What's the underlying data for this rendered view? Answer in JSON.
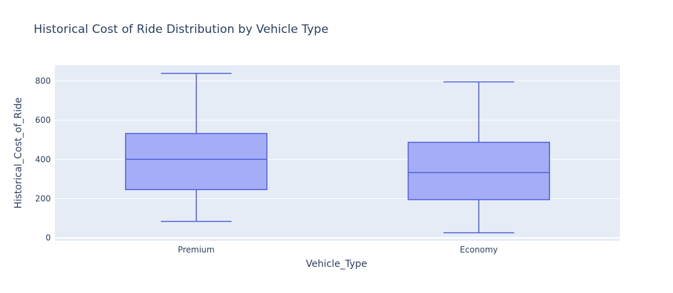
{
  "chart_data": {
    "type": "box",
    "title": "Historical Cost of Ride Distribution by Vehicle Type",
    "xlabel": "Vehicle_Type",
    "ylabel": "Historical_Cost_of_Ride",
    "categories": [
      "Premium",
      "Economy"
    ],
    "boxes": [
      {
        "category": "Premium",
        "min": 84,
        "q1": 246,
        "median": 400,
        "q3": 532,
        "max": 838
      },
      {
        "category": "Economy",
        "min": 26,
        "q1": 195,
        "median": 333,
        "q3": 487,
        "max": 795
      }
    ],
    "ylim": [
      -15,
      880
    ],
    "yticks": [
      0,
      200,
      400,
      600,
      800
    ],
    "grid": true,
    "colors": {
      "plot_bg": "#e5ecf6",
      "grid": "#ffffff",
      "box_fill": "#a0aaf6",
      "box_line": "#4f5fdc",
      "text": "#2a3f5f"
    }
  }
}
